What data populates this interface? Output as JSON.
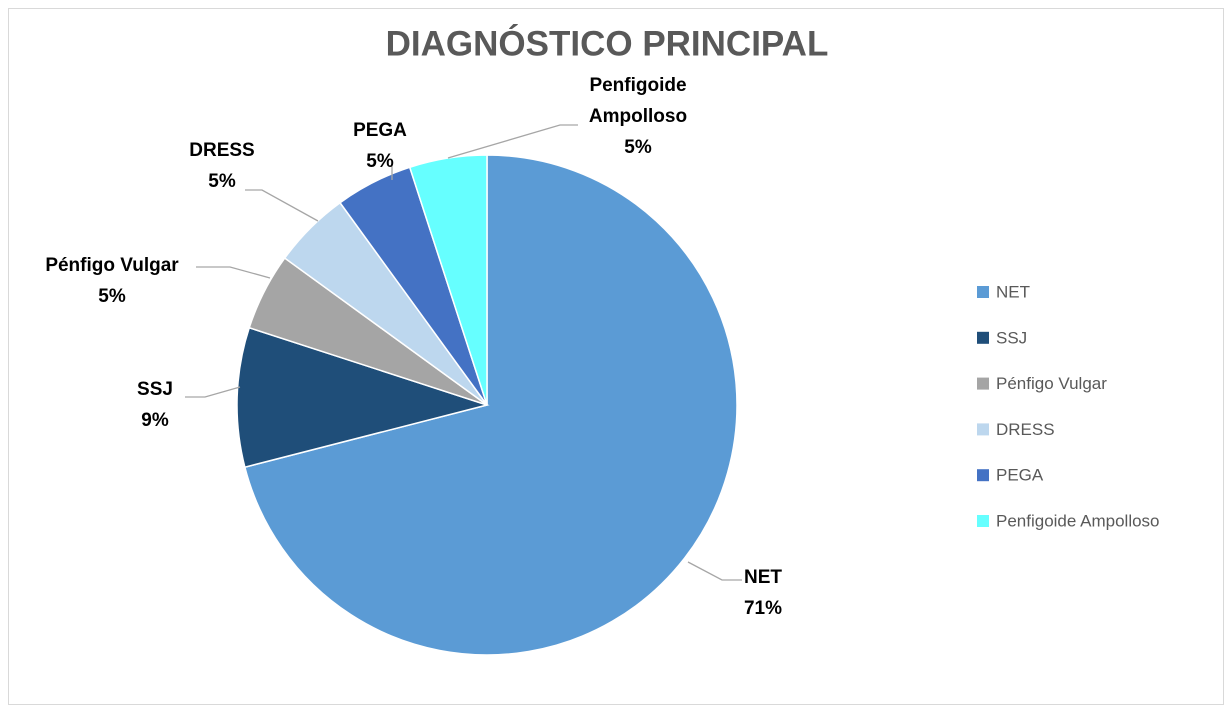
{
  "chart_data": {
    "type": "pie",
    "title": "DIAGNÓSTICO PRINCIPAL",
    "categories": [
      "NET",
      "SSJ",
      "Pénfigo Vulgar",
      "DRESS",
      "PEGA",
      "Penfigoide Ampolloso"
    ],
    "values": [
      71,
      9,
      5,
      5,
      5,
      5
    ],
    "value_labels": [
      "71%",
      "9%",
      "5%",
      "5%",
      "5%",
      "5%"
    ],
    "colors": [
      "#5b9bd5",
      "#1f4e79",
      "#a5a5a5",
      "#bdd7ee",
      "#4472c4",
      "#66ffff"
    ],
    "legend": "right"
  }
}
